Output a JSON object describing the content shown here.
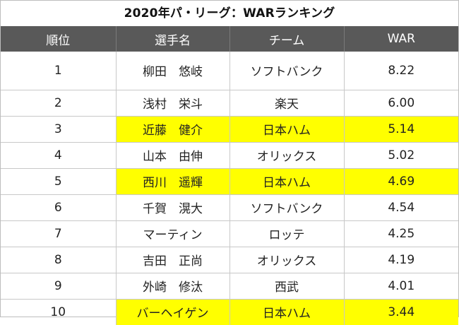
{
  "title": "2020年パ・リーグ：WARランキング",
  "columns": {
    "rank": "順位",
    "name": "選手名",
    "team": "チーム",
    "war": "WAR"
  },
  "highlight_color": "#ffff00",
  "header_color": "#595959",
  "rows": [
    {
      "rank": "1",
      "name": "柳田　悠岐",
      "team": "ソフトバンク",
      "war": "8.22",
      "highlight": false
    },
    {
      "rank": "2",
      "name": "浅村　栄斗",
      "team": "楽天",
      "war": "6.00",
      "highlight": false
    },
    {
      "rank": "3",
      "name": "近藤　健介",
      "team": "日本ハム",
      "war": "5.14",
      "highlight": true
    },
    {
      "rank": "4",
      "name": "山本　由伸",
      "team": "オリックス",
      "war": "5.02",
      "highlight": false
    },
    {
      "rank": "5",
      "name": "西川　遥輝",
      "team": "日本ハム",
      "war": "4.69",
      "highlight": true
    },
    {
      "rank": "6",
      "name": "千賀　滉大",
      "team": "ソフトバンク",
      "war": "4.54",
      "highlight": false
    },
    {
      "rank": "7",
      "name": "マーティン",
      "team": "ロッテ",
      "war": "4.25",
      "highlight": false
    },
    {
      "rank": "8",
      "name": "吉田　正尚",
      "team": "オリックス",
      "war": "4.19",
      "highlight": false
    },
    {
      "rank": "9",
      "name": "外崎　修汰",
      "team": "西武",
      "war": "4.01",
      "highlight": false
    },
    {
      "rank": "10",
      "name": "バーヘイゲン",
      "team": "日本ハム",
      "war": "3.44",
      "highlight": true
    }
  ]
}
